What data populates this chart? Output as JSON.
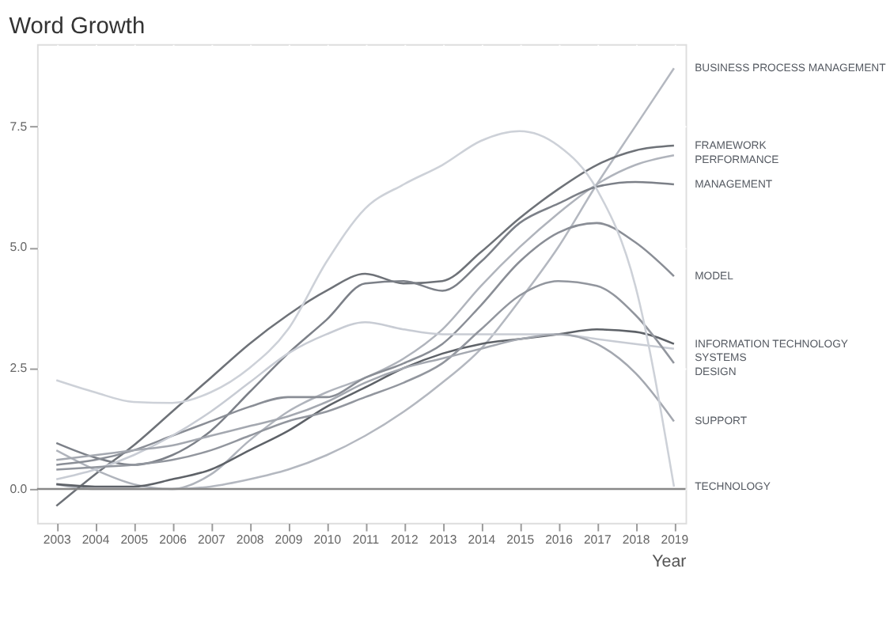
{
  "chart_data": {
    "type": "line",
    "title": "Word Growth",
    "xlabel": "Year",
    "x": [
      2003,
      2004,
      2005,
      2006,
      2007,
      2008,
      2009,
      2010,
      2011,
      2012,
      2013,
      2014,
      2015,
      2016,
      2017,
      2018,
      2019
    ],
    "xlim": [
      2002.5,
      2019.3
    ],
    "xticks": [
      2003,
      2004,
      2005,
      2006,
      2007,
      2008,
      2009,
      2010,
      2011,
      2012,
      2013,
      2014,
      2015,
      2016,
      2017,
      2018,
      2019
    ],
    "ylim": [
      -0.7,
      9.2
    ],
    "yticks": [
      {
        "value": 0,
        "label": "0.0"
      },
      {
        "value": 2.5,
        "label": "2.5"
      },
      {
        "value": 5,
        "label": "5.0"
      },
      {
        "value": 7.5,
        "label": "7.5"
      }
    ],
    "grid": true,
    "marker": "none",
    "line_style": "solid",
    "ref_lines": [
      {
        "axis": "y",
        "value": 0,
        "label": null,
        "color": "#888888"
      }
    ],
    "series": [
      {
        "name": "BUSINESS PROCESS MANAGEMENT",
        "color": "#b4b8c0",
        "values": [
          0.1,
          0,
          0,
          0,
          0.05,
          0.2,
          0.4,
          0.7,
          1.1,
          1.6,
          2.2,
          2.9,
          3.9,
          5.0,
          6.3,
          7.5,
          8.7
        ]
      },
      {
        "name": "FRAMEWORK",
        "color": "#6e7278",
        "values": [
          -0.35,
          0.3,
          0.9,
          1.6,
          2.3,
          3.0,
          3.6,
          4.1,
          4.45,
          4.25,
          4.3,
          4.9,
          5.6,
          6.2,
          6.7,
          7.0,
          7.1
        ]
      },
      {
        "name": "PERFORMANCE",
        "color": "#b0b4bc",
        "values": [
          0.8,
          0.4,
          0.1,
          0,
          0.3,
          1.0,
          1.6,
          2.0,
          2.3,
          2.7,
          3.3,
          4.2,
          5.0,
          5.7,
          6.3,
          6.7,
          6.9
        ]
      },
      {
        "name": "MANAGEMENT",
        "color": "#7c8088",
        "values": [
          0.95,
          0.65,
          0.5,
          0.7,
          1.2,
          2.0,
          2.8,
          3.5,
          4.25,
          4.3,
          4.1,
          4.7,
          5.5,
          5.9,
          6.25,
          6.35,
          6.3
        ]
      },
      {
        "name": "MODEL",
        "color": "#8a8e96",
        "values": [
          0.5,
          0.6,
          0.8,
          1.1,
          1.4,
          1.7,
          1.9,
          1.9,
          2.3,
          2.6,
          3.0,
          3.8,
          4.7,
          5.3,
          5.5,
          5.1,
          4.4
        ]
      },
      {
        "name": "SYSTEMS",
        "color": "#c8ccd4",
        "values": [
          0.2,
          0.4,
          0.7,
          1.1,
          1.6,
          2.2,
          2.8,
          3.2,
          3.45,
          3.3,
          3.2,
          3.2,
          3.2,
          3.2,
          3.1,
          3.0,
          2.9
        ]
      },
      {
        "name": "INFORMATION TECHNOLOGY",
        "color": "#5e6268",
        "values": [
          0.1,
          0.05,
          0.05,
          0.2,
          0.4,
          0.8,
          1.2,
          1.7,
          2.1,
          2.5,
          2.8,
          3.0,
          3.1,
          3.2,
          3.3,
          3.25,
          3.0
        ]
      },
      {
        "name": "DESIGN",
        "color": "#92969e",
        "values": [
          0.4,
          0.45,
          0.5,
          0.6,
          0.8,
          1.1,
          1.4,
          1.6,
          1.9,
          2.2,
          2.6,
          3.3,
          4.0,
          4.3,
          4.2,
          3.6,
          2.6
        ]
      },
      {
        "name": "SUPPORT",
        "color": "#a4a8b0",
        "values": [
          0.6,
          0.7,
          0.8,
          0.9,
          1.1,
          1.3,
          1.5,
          1.8,
          2.2,
          2.5,
          2.7,
          2.9,
          3.1,
          3.2,
          3.0,
          2.4,
          1.4
        ]
      },
      {
        "name": "TECHNOLOGY",
        "color": "#cdd1d8",
        "values": [
          2.25,
          2.0,
          1.8,
          1.78,
          2.0,
          2.5,
          3.3,
          4.7,
          5.8,
          6.3,
          6.7,
          7.2,
          7.4,
          7.1,
          6.2,
          4.2,
          0.05
        ]
      }
    ]
  }
}
